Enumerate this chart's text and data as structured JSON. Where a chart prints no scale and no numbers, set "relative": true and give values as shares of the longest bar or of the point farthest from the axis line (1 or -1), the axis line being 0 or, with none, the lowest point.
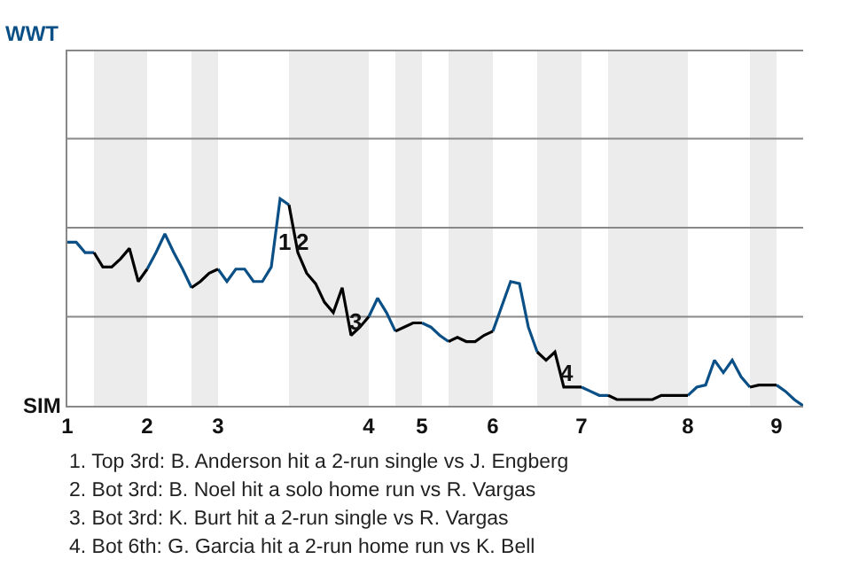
{
  "chart_data": {
    "type": "line",
    "relative": true,
    "categories": [
      "1",
      null,
      null,
      null,
      null,
      null,
      null,
      null,
      null,
      "2",
      null,
      null,
      null,
      null,
      null,
      null,
      null,
      "3",
      null,
      null,
      null,
      null,
      null,
      null,
      null,
      null,
      null,
      null,
      null,
      null,
      null,
      null,
      null,
      null,
      "4",
      null,
      null,
      null,
      null,
      null,
      "5",
      null,
      null,
      null,
      null,
      null,
      null,
      null,
      "6",
      null,
      null,
      null,
      null,
      null,
      null,
      null,
      null,
      null,
      "7",
      null,
      null,
      null,
      null,
      null,
      null,
      null,
      null,
      null,
      null,
      null,
      "8",
      null,
      null,
      null,
      null,
      null,
      null,
      null,
      null,
      null,
      "9",
      null,
      null,
      null
    ],
    "marker": "none",
    "ref_lines": [
      {
        "axis": "y",
        "value": 0.43,
        "color": "#888888"
      },
      {
        "axis": "y",
        "value": 0.86,
        "color": "#888888"
      },
      {
        "axis": "y",
        "value": 1.29,
        "color": "#888888"
      }
    ],
    "line_style": "solid",
    "series": [
      {
        "color": "#0a4f86",
        "values": [
          0.79,
          0.79,
          0.74,
          0.74,
          null,
          null,
          null,
          null,
          null,
          0.66,
          0.74,
          0.83,
          0.74,
          0.66,
          0.57,
          null,
          null,
          0.66,
          0.6,
          0.66,
          0.66,
          0.6,
          0.6,
          0.67,
          1,
          0.97,
          null,
          null,
          null,
          null,
          null,
          null,
          null,
          null,
          0.43,
          0.52,
          0.45,
          0.36,
          null,
          null,
          0.4,
          0.38,
          0.34,
          0.31,
          null,
          null,
          null,
          null,
          0.36,
          0.48,
          0.6,
          0.59,
          0.38,
          0.26,
          null,
          null,
          null,
          null,
          0.09,
          0.07,
          0.05,
          0.05,
          null,
          null,
          null,
          null,
          null,
          null,
          null,
          null,
          0.05,
          0.09,
          0.1,
          0.22,
          0.16,
          0.22,
          0.14,
          0.09,
          null,
          null,
          0.1,
          0.07,
          0.03,
          0
        ]
      },
      {
        "color": "#000000",
        "values": [
          null,
          null,
          null,
          0.74,
          0.67,
          0.67,
          0.71,
          0.76,
          0.6,
          0.66,
          null,
          null,
          null,
          null,
          0.57,
          0.6,
          0.64,
          0.66,
          null,
          null,
          null,
          null,
          null,
          null,
          null,
          0.97,
          0.74,
          0.64,
          0.59,
          0.5,
          0.45,
          0.57,
          0.34,
          0.38,
          0.43,
          null,
          null,
          0.36,
          0.38,
          0.4,
          0.4,
          null,
          null,
          0.31,
          0.33,
          0.31,
          0.31,
          0.34,
          0.36,
          null,
          null,
          null,
          null,
          0.26,
          0.22,
          0.26,
          0.09,
          0.09,
          0.09,
          null,
          null,
          0.05,
          0.03,
          0.03,
          0.03,
          0.03,
          0.03,
          0.05,
          0.05,
          0.05,
          0.05,
          null,
          null,
          null,
          null,
          null,
          null,
          0.09,
          0.1,
          0.1,
          0.1,
          null,
          null,
          null
        ]
      }
    ],
    "annotations": [
      "WWT",
      "SIM",
      {
        "text": "1",
        "y": 0.79
      },
      {
        "text": "2",
        "y": 0.79
      },
      {
        "text": "3",
        "y": 0.41
      },
      {
        "text": "4",
        "y": 0.16
      },
      "1. Top 3rd: B. Anderson hit a 2-run single vs J. Engberg",
      "2. Bot 3rd: B. Noel hit a solo home run vs R. Vargas",
      "3. Bot 3rd: K. Burt hit a 2-run single vs R. Vargas",
      "4. Bot 6th: G. Garcia hit a 2-run home run vs K. Bell"
    ]
  }
}
